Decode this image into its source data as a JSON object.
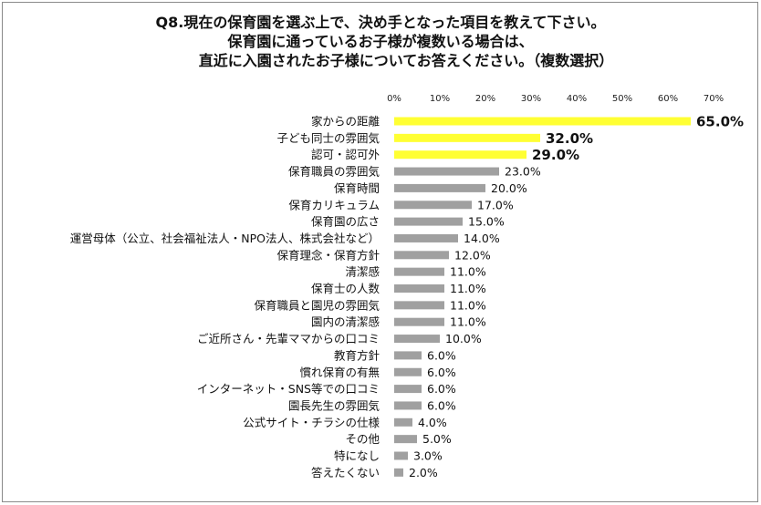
{
  "chart_data": {
    "type": "bar",
    "orientation": "horizontal",
    "title_lines": [
      "Q8.現在の保育園を選ぶ上で、決め手となった項目を教えて下さい。",
      "保育園に通っているお子様が複数いる場合は、",
      "直近に入園されたお子様についてお答えください。（複数選択）"
    ],
    "xlabel": "",
    "ylabel": "",
    "xlim": [
      0,
      70
    ],
    "x_ticks": [
      "0%",
      "10%",
      "20%",
      "30%",
      "40%",
      "50%",
      "60%",
      "70%"
    ],
    "grid": false,
    "categories": [
      "家からの距離",
      "子ども同士の雰囲気",
      "認可・認可外",
      "保育職員の雰囲気",
      "保育時間",
      "保育カリキュラム",
      "保育園の広さ",
      "運営母体（公立、社会福祉法人・NPO法人、株式会社など）",
      "保育理念・保育方針",
      "清潔感",
      "保育士の人数",
      "保育職員と園児の雰囲気",
      "園内の清潔感",
      "ご近所さん・先輩ママからの口コミ",
      "教育方針",
      "慣れ保育の有無",
      "インターネット・SNS等での口コミ",
      "園長先生の雰囲気",
      "公式サイト・チラシの仕様",
      "その他",
      "特になし",
      "答えたくない"
    ],
    "values": [
      65.0,
      32.0,
      29.0,
      23.0,
      20.0,
      17.0,
      15.0,
      14.0,
      12.0,
      11.0,
      11.0,
      11.0,
      11.0,
      10.0,
      6.0,
      6.0,
      6.0,
      6.0,
      4.0,
      5.0,
      3.0,
      2.0
    ],
    "value_labels": [
      "65.0%",
      "32.0%",
      "29.0%",
      "23.0%",
      "20.0%",
      "17.0%",
      "15.0%",
      "14.0%",
      "12.0%",
      "11.0%",
      "11.0%",
      "11.0%",
      "11.0%",
      "10.0%",
      "6.0%",
      "6.0%",
      "6.0%",
      "6.0%",
      "4.0%",
      "5.0%",
      "3.0%",
      "2.0%"
    ],
    "highlight_count": 3,
    "colors": {
      "highlight": "#ffff33",
      "default": "#a0a0a0"
    }
  }
}
